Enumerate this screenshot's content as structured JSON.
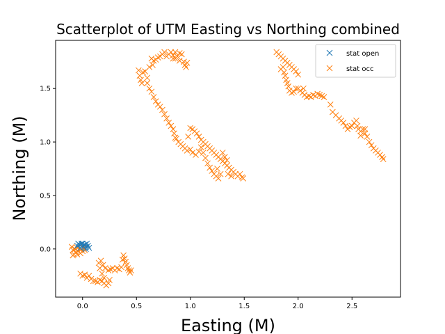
{
  "chart_data": {
    "type": "scatter",
    "title": "Scatterplot of UTM Easting vs Northing combined",
    "xlabel": "Easting (M)",
    "ylabel": "Northing (M)",
    "xlim": [
      -0.25,
      2.95
    ],
    "ylim": [
      -0.45,
      1.95
    ],
    "xticks": [
      0.0,
      0.5,
      1.0,
      1.5,
      2.0,
      2.5
    ],
    "xtick_labels": [
      "0.0",
      "0.5",
      "1.0",
      "1.5",
      "2.0",
      "2.5"
    ],
    "yticks": [
      0.0,
      0.5,
      1.0,
      1.5
    ],
    "ytick_labels": [
      "0.0",
      "0.5",
      "1.0",
      "1.5"
    ],
    "marker": "x",
    "grid": false,
    "legend_position": "top-right",
    "series": [
      {
        "name": "stat open",
        "color": "#1f77b4",
        "points": [
          [
            -0.05,
            0.03
          ],
          [
            -0.03,
            0.04
          ],
          [
            -0.01,
            0.05
          ],
          [
            0.0,
            0.03
          ],
          [
            0.02,
            0.04
          ],
          [
            0.03,
            0.02
          ],
          [
            0.05,
            0.03
          ],
          [
            0.06,
            0.01
          ],
          [
            0.01,
            0.02
          ],
          [
            -0.02,
            0.01
          ],
          [
            0.04,
            0.05
          ],
          [
            -0.04,
            0.05
          ],
          [
            0.0,
            0.05
          ],
          [
            0.03,
            0.0
          ]
        ]
      },
      {
        "name": "stat occ",
        "color": "#ff7f0e",
        "points": [
          [
            -0.1,
            0.02
          ],
          [
            -0.09,
            -0.01
          ],
          [
            -0.08,
            -0.05
          ],
          [
            -0.07,
            0.0
          ],
          [
            -0.06,
            -0.03
          ],
          [
            -0.05,
            0.01
          ],
          [
            -0.04,
            -0.02
          ],
          [
            -0.03,
            0.0
          ],
          [
            -0.02,
            -0.04
          ],
          [
            -0.01,
            0.0
          ],
          [
            0.0,
            -0.02
          ],
          [
            0.01,
            0.01
          ],
          [
            0.02,
            -0.01
          ],
          [
            -0.09,
            -0.06
          ],
          [
            -0.05,
            -0.05
          ],
          [
            -0.02,
            -0.23
          ],
          [
            0.0,
            -0.25
          ],
          [
            0.02,
            -0.24
          ],
          [
            0.04,
            -0.27
          ],
          [
            0.06,
            -0.25
          ],
          [
            0.08,
            -0.28
          ],
          [
            0.1,
            -0.3
          ],
          [
            0.12,
            -0.3
          ],
          [
            0.14,
            -0.31
          ],
          [
            0.16,
            -0.29
          ],
          [
            0.18,
            -0.3
          ],
          [
            0.2,
            -0.32
          ],
          [
            0.22,
            -0.34
          ],
          [
            0.24,
            -0.32
          ],
          [
            0.25,
            -0.29
          ],
          [
            0.2,
            -0.27
          ],
          [
            0.18,
            -0.23
          ],
          [
            0.16,
            -0.18
          ],
          [
            0.15,
            -0.13
          ],
          [
            0.17,
            -0.11
          ],
          [
            0.19,
            -0.15
          ],
          [
            0.21,
            -0.18
          ],
          [
            0.24,
            -0.2
          ],
          [
            0.26,
            -0.19
          ],
          [
            0.28,
            -0.18
          ],
          [
            0.3,
            -0.2
          ],
          [
            0.32,
            -0.18
          ],
          [
            0.34,
            -0.19
          ],
          [
            0.36,
            -0.17
          ],
          [
            0.37,
            -0.1
          ],
          [
            0.38,
            -0.06
          ],
          [
            0.39,
            -0.09
          ],
          [
            0.4,
            -0.12
          ],
          [
            0.41,
            -0.15
          ],
          [
            0.42,
            -0.18
          ],
          [
            0.44,
            -0.22
          ],
          [
            0.45,
            -0.2
          ],
          [
            0.43,
            -0.2
          ],
          [
            0.52,
            1.67
          ],
          [
            0.53,
            1.62
          ],
          [
            0.54,
            1.58
          ],
          [
            0.55,
            1.55
          ],
          [
            0.56,
            1.65
          ],
          [
            0.58,
            1.66
          ],
          [
            0.6,
            1.6
          ],
          [
            0.6,
            1.55
          ],
          [
            0.62,
            1.5
          ],
          [
            0.64,
            1.47
          ],
          [
            0.66,
            1.42
          ],
          [
            0.68,
            1.38
          ],
          [
            0.7,
            1.35
          ],
          [
            0.72,
            1.33
          ],
          [
            0.74,
            1.3
          ],
          [
            0.76,
            1.26
          ],
          [
            0.78,
            1.22
          ],
          [
            0.8,
            1.18
          ],
          [
            0.82,
            1.15
          ],
          [
            0.84,
            1.12
          ],
          [
            0.85,
            1.08
          ],
          [
            0.86,
            1.04
          ],
          [
            0.87,
            1.03
          ],
          [
            0.89,
            1.0
          ],
          [
            0.91,
            0.98
          ],
          [
            0.93,
            0.96
          ],
          [
            0.95,
            0.94
          ],
          [
            0.97,
            0.92
          ],
          [
            1.0,
            0.93
          ],
          [
            1.02,
            0.9
          ],
          [
            1.05,
            0.88
          ],
          [
            1.08,
            0.91
          ],
          [
            1.1,
            0.95
          ],
          [
            1.12,
            0.9
          ],
          [
            1.14,
            0.85
          ],
          [
            1.16,
            0.8
          ],
          [
            1.18,
            0.76
          ],
          [
            1.2,
            0.73
          ],
          [
            1.22,
            0.7
          ],
          [
            1.24,
            0.68
          ],
          [
            1.26,
            0.66
          ],
          [
            1.28,
            0.7
          ],
          [
            1.25,
            0.75
          ],
          [
            0.98,
            1.05
          ],
          [
            1.0,
            1.13
          ],
          [
            1.02,
            1.12
          ],
          [
            1.04,
            1.1
          ],
          [
            1.06,
            1.08
          ],
          [
            1.08,
            1.05
          ],
          [
            1.1,
            1.02
          ],
          [
            1.12,
            1.0
          ],
          [
            1.14,
            0.98
          ],
          [
            1.16,
            0.96
          ],
          [
            1.18,
            0.94
          ],
          [
            1.2,
            0.92
          ],
          [
            1.22,
            0.9
          ],
          [
            1.24,
            0.88
          ],
          [
            1.26,
            0.86
          ],
          [
            1.28,
            0.84
          ],
          [
            1.3,
            0.82
          ],
          [
            1.32,
            0.8
          ],
          [
            1.34,
            0.78
          ],
          [
            1.36,
            0.76
          ],
          [
            1.38,
            0.74
          ],
          [
            1.4,
            0.72
          ],
          [
            1.42,
            0.7
          ],
          [
            1.44,
            0.68
          ],
          [
            1.46,
            0.7
          ],
          [
            1.48,
            0.67
          ],
          [
            1.49,
            0.66
          ],
          [
            1.35,
            0.7
          ],
          [
            1.38,
            0.68
          ],
          [
            1.3,
            0.9
          ],
          [
            1.32,
            0.86
          ],
          [
            1.34,
            0.83
          ],
          [
            0.64,
            1.78
          ],
          [
            0.66,
            1.76
          ],
          [
            0.68,
            1.77
          ],
          [
            0.7,
            1.79
          ],
          [
            0.72,
            1.8
          ],
          [
            0.74,
            1.82
          ],
          [
            0.76,
            1.84
          ],
          [
            0.78,
            1.8
          ],
          [
            0.8,
            1.82
          ],
          [
            0.82,
            1.84
          ],
          [
            0.84,
            1.81
          ],
          [
            0.86,
            1.78
          ],
          [
            0.88,
            1.8
          ],
          [
            0.9,
            1.83
          ],
          [
            0.92,
            1.82
          ],
          [
            0.94,
            1.75
          ],
          [
            0.95,
            1.72
          ],
          [
            0.96,
            1.7
          ],
          [
            0.97,
            1.74
          ],
          [
            0.9,
            1.76
          ],
          [
            0.86,
            1.84
          ],
          [
            0.84,
            1.78
          ],
          [
            0.62,
            1.7
          ],
          [
            0.65,
            1.72
          ],
          [
            1.8,
            1.84
          ],
          [
            1.82,
            1.82
          ],
          [
            1.84,
            1.8
          ],
          [
            1.86,
            1.78
          ],
          [
            1.88,
            1.76
          ],
          [
            1.9,
            1.74
          ],
          [
            1.92,
            1.72
          ],
          [
            1.94,
            1.7
          ],
          [
            1.96,
            1.68
          ],
          [
            1.98,
            1.66
          ],
          [
            2.0,
            1.63
          ],
          [
            1.86,
            1.7
          ],
          [
            1.87,
            1.65
          ],
          [
            1.88,
            1.62
          ],
          [
            1.89,
            1.58
          ],
          [
            1.9,
            1.55
          ],
          [
            1.91,
            1.52
          ],
          [
            1.92,
            1.48
          ],
          [
            1.94,
            1.46
          ],
          [
            1.96,
            1.47
          ],
          [
            1.98,
            1.5
          ],
          [
            2.0,
            1.5
          ],
          [
            2.02,
            1.48
          ],
          [
            2.04,
            1.46
          ],
          [
            2.06,
            1.44
          ],
          [
            2.08,
            1.42
          ],
          [
            2.1,
            1.43
          ],
          [
            2.12,
            1.42
          ],
          [
            2.14,
            1.44
          ],
          [
            2.16,
            1.43
          ],
          [
            2.18,
            1.45
          ],
          [
            2.2,
            1.44
          ],
          [
            2.22,
            1.43
          ],
          [
            2.24,
            1.42
          ],
          [
            2.3,
            1.35
          ],
          [
            2.32,
            1.28
          ],
          [
            2.35,
            1.25
          ],
          [
            2.38,
            1.22
          ],
          [
            2.4,
            1.2
          ],
          [
            2.42,
            1.18
          ],
          [
            2.44,
            1.15
          ],
          [
            2.46,
            1.12
          ],
          [
            2.48,
            1.14
          ],
          [
            2.5,
            1.15
          ],
          [
            2.52,
            1.18
          ],
          [
            2.54,
            1.2
          ],
          [
            2.55,
            1.15
          ],
          [
            2.56,
            1.12
          ],
          [
            2.58,
            1.1
          ],
          [
            2.6,
            1.12
          ],
          [
            2.62,
            1.08
          ],
          [
            2.64,
            1.05
          ],
          [
            2.66,
            1.0
          ],
          [
            2.68,
            0.97
          ],
          [
            2.7,
            0.94
          ],
          [
            2.72,
            0.92
          ],
          [
            2.74,
            0.9
          ],
          [
            2.76,
            0.88
          ],
          [
            2.78,
            0.86
          ],
          [
            2.79,
            0.84
          ],
          [
            2.62,
            1.12
          ],
          [
            2.58,
            1.06
          ],
          [
            2.05,
            1.5
          ],
          [
            1.84,
            1.68
          ]
        ]
      }
    ]
  }
}
